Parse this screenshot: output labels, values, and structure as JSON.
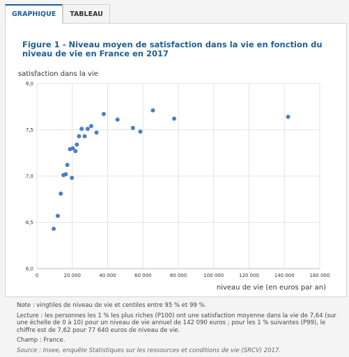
{
  "tabs": [
    {
      "label": "GRAPHIQUE",
      "active": true
    },
    {
      "label": "TABLEAU",
      "active": false
    }
  ],
  "colors": {
    "accent": "#1f5d94",
    "point": "#4a7fc4",
    "grid": "#e3e3e3"
  },
  "chart_data": {
    "type": "scatter",
    "title": "Figure 1 - Niveau moyen de satisfaction dans la vie en fonction du niveau de vie en France en 2017",
    "xlabel": "niveau de vie (en euros par an)",
    "ylabel": "satisfaction dans la vie",
    "xlim": [
      0,
      160000
    ],
    "ylim": [
      6.0,
      8.0
    ],
    "x_ticks": [
      0,
      20000,
      40000,
      60000,
      80000,
      100000,
      120000,
      140000,
      160000
    ],
    "x_tick_labels": [
      "0",
      "20 000",
      "40 000",
      "60 000",
      "80 000",
      "100 000",
      "120 000",
      "140 000",
      "160 000"
    ],
    "y_ticks": [
      6.0,
      6.5,
      7.0,
      7.5,
      8.0
    ],
    "y_tick_labels": [
      "6,0",
      "6,5",
      "7,0",
      "7,5",
      "8,0"
    ],
    "grid": true,
    "points": [
      {
        "x": 9500,
        "y": 6.43
      },
      {
        "x": 11800,
        "y": 6.57
      },
      {
        "x": 13500,
        "y": 6.81
      },
      {
        "x": 15000,
        "y": 7.01
      },
      {
        "x": 16300,
        "y": 7.02
      },
      {
        "x": 17200,
        "y": 7.12
      },
      {
        "x": 18700,
        "y": 7.29
      },
      {
        "x": 19800,
        "y": 6.98
      },
      {
        "x": 20300,
        "y": 7.3
      },
      {
        "x": 21800,
        "y": 7.27
      },
      {
        "x": 22600,
        "y": 7.34
      },
      {
        "x": 23800,
        "y": 7.43
      },
      {
        "x": 25300,
        "y": 7.51
      },
      {
        "x": 27000,
        "y": 7.43
      },
      {
        "x": 28700,
        "y": 7.51
      },
      {
        "x": 30700,
        "y": 7.54
      },
      {
        "x": 33700,
        "y": 7.47
      },
      {
        "x": 37800,
        "y": 7.67
      },
      {
        "x": 45600,
        "y": 7.61
      },
      {
        "x": 54300,
        "y": 7.52
      },
      {
        "x": 58500,
        "y": 7.48
      },
      {
        "x": 65600,
        "y": 7.71
      },
      {
        "x": 77640,
        "y": 7.62
      },
      {
        "x": 142090,
        "y": 7.64
      }
    ]
  },
  "notes": {
    "note": "Note : vingtiles de niveau de vie et centiles entre 95 % et 99 %.",
    "lecture": "Lecture : les personnes les 1 % les plus riches (P100) ont une satisfaction moyenne dans la vie de 7,64 (sur une échelle de 0 à 10) pour un niveau de vie annuel de 142 090 euros ; pour les 1 % suivantes (P99), le chiffre est de 7,62 pour 77 640 euros de niveau de vie.",
    "champ": "Champ : France.",
    "source": "Source : Insee, enquête Statistiques sur les ressources et conditions de vie (SRCV) 2017."
  }
}
